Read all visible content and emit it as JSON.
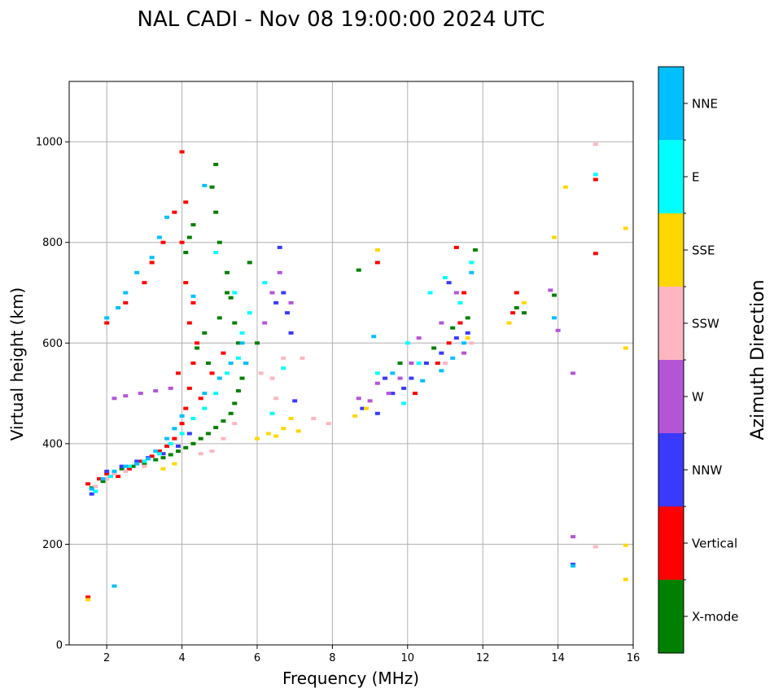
{
  "chart_data": {
    "type": "scatter",
    "title": "NAL CADI - Nov 08 19:00:00 2024 UTC",
    "xlabel": "Frequency (MHz)",
    "ylabel": "Virtual height (km)",
    "xlim": [
      1,
      16
    ],
    "ylim": [
      0,
      1120
    ],
    "xticks": [
      2,
      4,
      6,
      8,
      10,
      12,
      14,
      16
    ],
    "yticks": [
      0,
      200,
      400,
      600,
      800,
      1000
    ],
    "grid": true,
    "colorbar": {
      "title": "Azimuth Direction",
      "categories": [
        {
          "name": "X-mode",
          "color": "#008000"
        },
        {
          "name": "Vertical",
          "color": "#ff0000"
        },
        {
          "name": "NNW",
          "color": "#3a3aff"
        },
        {
          "name": "W",
          "color": "#b455d6"
        },
        {
          "name": "SSW",
          "color": "#ffb6c1"
        },
        {
          "name": "SSE",
          "color": "#ffd700"
        },
        {
          "name": "E",
          "color": "#00ffff"
        },
        {
          "name": "NNE",
          "color": "#00bfff"
        }
      ]
    },
    "series": [
      {
        "name": "X-mode",
        "points": [
          [
            1.6,
            312
          ],
          [
            1.9,
            325
          ],
          [
            2.1,
            335
          ],
          [
            2.4,
            350
          ],
          [
            2.7,
            355
          ],
          [
            3.0,
            360
          ],
          [
            3.3,
            368
          ],
          [
            3.5,
            372
          ],
          [
            3.7,
            378
          ],
          [
            3.9,
            385
          ],
          [
            4.1,
            392
          ],
          [
            4.3,
            400
          ],
          [
            4.5,
            410
          ],
          [
            4.7,
            420
          ],
          [
            4.9,
            432
          ],
          [
            5.1,
            445
          ],
          [
            5.3,
            460
          ],
          [
            5.4,
            480
          ],
          [
            5.5,
            505
          ],
          [
            5.6,
            530
          ],
          [
            5.7,
            560
          ],
          [
            5.5,
            600
          ],
          [
            5.4,
            640
          ],
          [
            5.3,
            690
          ],
          [
            5.2,
            740
          ],
          [
            5.0,
            800
          ],
          [
            4.9,
            860
          ],
          [
            4.8,
            910
          ],
          [
            4.9,
            955
          ],
          [
            4.1,
            780
          ],
          [
            4.2,
            810
          ],
          [
            4.3,
            835
          ],
          [
            4.7,
            560
          ],
          [
            5.0,
            650
          ],
          [
            5.2,
            700
          ],
          [
            5.8,
            760
          ],
          [
            6.0,
            600
          ],
          [
            9.8,
            560
          ],
          [
            10.7,
            590
          ],
          [
            11.2,
            630
          ],
          [
            11.6,
            650
          ],
          [
            11.8,
            785
          ],
          [
            12.9,
            670
          ],
          [
            13.1,
            660
          ],
          [
            13.9,
            695
          ],
          [
            8.7,
            745
          ],
          [
            4.6,
            620
          ],
          [
            4.4,
            590
          ]
        ]
      },
      {
        "name": "Vertical",
        "points": [
          [
            1.5,
            320
          ],
          [
            1.8,
            330
          ],
          [
            2.0,
            340
          ],
          [
            2.3,
            335
          ],
          [
            2.6,
            350
          ],
          [
            2.9,
            365
          ],
          [
            3.2,
            375
          ],
          [
            3.4,
            385
          ],
          [
            3.6,
            395
          ],
          [
            3.8,
            410
          ],
          [
            4.0,
            440
          ],
          [
            4.1,
            470
          ],
          [
            4.2,
            510
          ],
          [
            4.3,
            560
          ],
          [
            4.4,
            600
          ],
          [
            4.2,
            640
          ],
          [
            4.3,
            680
          ],
          [
            4.1,
            720
          ],
          [
            4.0,
            800
          ],
          [
            4.1,
            880
          ],
          [
            4.0,
            980
          ],
          [
            3.8,
            860
          ],
          [
            3.5,
            800
          ],
          [
            3.2,
            760
          ],
          [
            3.0,
            720
          ],
          [
            2.5,
            680
          ],
          [
            2.0,
            640
          ],
          [
            4.5,
            490
          ],
          [
            4.8,
            540
          ],
          [
            5.1,
            580
          ],
          [
            3.9,
            540
          ],
          [
            9.2,
            760
          ],
          [
            10.2,
            500
          ],
          [
            10.8,
            560
          ],
          [
            11.1,
            600
          ],
          [
            11.4,
            640
          ],
          [
            11.5,
            700
          ],
          [
            11.3,
            790
          ],
          [
            12.9,
            700
          ],
          [
            12.8,
            660
          ],
          [
            15.0,
            925
          ],
          [
            15.0,
            778
          ],
          [
            1.5,
            95
          ]
        ]
      },
      {
        "name": "NNW",
        "points": [
          [
            1.6,
            300
          ],
          [
            2.0,
            345
          ],
          [
            2.4,
            355
          ],
          [
            2.8,
            365
          ],
          [
            3.1,
            372
          ],
          [
            3.5,
            380
          ],
          [
            3.9,
            395
          ],
          [
            4.2,
            420
          ],
          [
            6.7,
            700
          ],
          [
            6.5,
            680
          ],
          [
            6.6,
            790
          ],
          [
            6.8,
            660
          ],
          [
            7.0,
            485
          ],
          [
            9.4,
            530
          ],
          [
            9.6,
            500
          ],
          [
            9.9,
            510
          ],
          [
            10.1,
            530
          ],
          [
            10.5,
            560
          ],
          [
            10.9,
            580
          ],
          [
            11.3,
            610
          ],
          [
            11.6,
            620
          ],
          [
            11.1,
            720
          ],
          [
            9.2,
            460
          ],
          [
            8.8,
            470
          ],
          [
            14.4,
            160
          ],
          [
            6.9,
            620
          ]
        ]
      },
      {
        "name": "W",
        "points": [
          [
            2.2,
            490
          ],
          [
            2.5,
            495
          ],
          [
            2.9,
            500
          ],
          [
            3.3,
            505
          ],
          [
            3.7,
            510
          ],
          [
            6.2,
            640
          ],
          [
            6.4,
            700
          ],
          [
            6.6,
            740
          ],
          [
            6.9,
            680
          ],
          [
            8.7,
            490
          ],
          [
            9.0,
            485
          ],
          [
            9.2,
            520
          ],
          [
            9.5,
            500
          ],
          [
            9.8,
            530
          ],
          [
            10.1,
            560
          ],
          [
            10.3,
            610
          ],
          [
            10.9,
            640
          ],
          [
            11.3,
            700
          ],
          [
            11.5,
            580
          ],
          [
            13.8,
            705
          ],
          [
            14.0,
            625
          ],
          [
            14.4,
            540
          ],
          [
            14.4,
            215
          ]
        ]
      },
      {
        "name": "SSW",
        "points": [
          [
            1.7,
            315
          ],
          [
            2.0,
            330
          ],
          [
            2.2,
            340
          ],
          [
            2.5,
            345
          ],
          [
            3.0,
            355
          ],
          [
            4.5,
            380
          ],
          [
            4.8,
            385
          ],
          [
            5.1,
            410
          ],
          [
            5.4,
            440
          ],
          [
            6.1,
            540
          ],
          [
            6.4,
            530
          ],
          [
            6.7,
            570
          ],
          [
            6.5,
            490
          ],
          [
            7.2,
            570
          ],
          [
            7.5,
            450
          ],
          [
            7.9,
            440
          ],
          [
            11.0,
            560
          ],
          [
            11.7,
            600
          ],
          [
            15.0,
            995
          ],
          [
            15.0,
            195
          ]
        ]
      },
      {
        "name": "SSE",
        "points": [
          [
            1.5,
            90
          ],
          [
            3.5,
            350
          ],
          [
            3.8,
            360
          ],
          [
            6.0,
            410
          ],
          [
            6.3,
            420
          ],
          [
            6.5,
            415
          ],
          [
            6.7,
            430
          ],
          [
            6.9,
            450
          ],
          [
            7.1,
            425
          ],
          [
            8.6,
            455
          ],
          [
            8.9,
            470
          ],
          [
            9.2,
            785
          ],
          [
            12.7,
            640
          ],
          [
            13.1,
            680
          ],
          [
            14.2,
            910
          ],
          [
            13.9,
            810
          ],
          [
            15.8,
            828
          ],
          [
            15.8,
            590
          ],
          [
            15.8,
            198
          ],
          [
            15.8,
            130
          ],
          [
            11.6,
            610
          ]
        ]
      },
      {
        "name": "E",
        "points": [
          [
            1.7,
            305
          ],
          [
            2.1,
            335
          ],
          [
            2.6,
            355
          ],
          [
            3.0,
            365
          ],
          [
            3.4,
            380
          ],
          [
            3.7,
            400
          ],
          [
            4.0,
            420
          ],
          [
            4.3,
            450
          ],
          [
            4.6,
            470
          ],
          [
            4.9,
            500
          ],
          [
            5.2,
            540
          ],
          [
            5.5,
            570
          ],
          [
            5.6,
            620
          ],
          [
            5.8,
            660
          ],
          [
            5.4,
            700
          ],
          [
            4.9,
            780
          ],
          [
            6.2,
            720
          ],
          [
            6.4,
            460
          ],
          [
            6.7,
            550
          ],
          [
            9.2,
            540
          ],
          [
            9.9,
            480
          ],
          [
            10.0,
            600
          ],
          [
            10.3,
            560
          ],
          [
            10.6,
            700
          ],
          [
            11.0,
            730
          ],
          [
            11.4,
            680
          ],
          [
            11.7,
            760
          ],
          [
            15.0,
            935
          ]
        ]
      },
      {
        "name": "NNE",
        "points": [
          [
            1.6,
            310
          ],
          [
            1.9,
            330
          ],
          [
            2.2,
            345
          ],
          [
            2.5,
            355
          ],
          [
            2.8,
            360
          ],
          [
            3.1,
            370
          ],
          [
            3.3,
            385
          ],
          [
            3.6,
            410
          ],
          [
            3.8,
            430
          ],
          [
            4.0,
            455
          ],
          [
            3.6,
            850
          ],
          [
            3.4,
            810
          ],
          [
            3.2,
            770
          ],
          [
            2.8,
            740
          ],
          [
            2.5,
            700
          ],
          [
            2.3,
            670
          ],
          [
            2.0,
            650
          ],
          [
            4.6,
            500
          ],
          [
            5.0,
            530
          ],
          [
            5.3,
            560
          ],
          [
            5.6,
            600
          ],
          [
            5.7,
            560
          ],
          [
            4.3,
            693
          ],
          [
            4.6,
            913
          ],
          [
            2.2,
            117
          ],
          [
            9.1,
            613
          ],
          [
            9.6,
            540
          ],
          [
            10.4,
            525
          ],
          [
            10.9,
            545
          ],
          [
            11.2,
            570
          ],
          [
            11.5,
            600
          ],
          [
            11.7,
            740
          ],
          [
            14.4,
            157
          ],
          [
            13.9,
            650
          ]
        ]
      }
    ]
  }
}
